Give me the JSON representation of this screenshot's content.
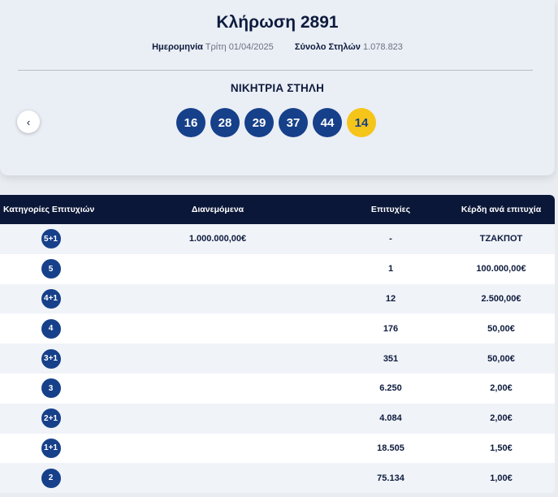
{
  "draw": {
    "title": "Κλήρωση 2891",
    "date_label": "Ημερομηνία",
    "date_value": "Τρίτη 01/04/2025",
    "columns_label": "Σύνολο Στηλών",
    "columns_value": "1.078.823",
    "winning_heading": "ΝΙΚΗΤΡΙΑ ΣΤΗΛΗ",
    "numbers": [
      "16",
      "28",
      "29",
      "37",
      "44"
    ],
    "joker": "14",
    "prev_icon": "chevron-left-icon"
  },
  "table": {
    "headers": {
      "category": "Κατηγορίες Επιτυχιών",
      "distributed": "Διανεμόμενα",
      "winners": "Επιτυχίες",
      "prize": "Κέρδη ανά επιτυχία"
    },
    "rows": [
      {
        "category": "5+1",
        "distributed": "1.000.000,00€",
        "winners": "-",
        "prize": "ΤΖΑΚΠΟΤ"
      },
      {
        "category": "5",
        "distributed": "",
        "winners": "1",
        "prize": "100.000,00€"
      },
      {
        "category": "4+1",
        "distributed": "",
        "winners": "12",
        "prize": "2.500,00€"
      },
      {
        "category": "4",
        "distributed": "",
        "winners": "176",
        "prize": "50,00€"
      },
      {
        "category": "3+1",
        "distributed": "",
        "winners": "351",
        "prize": "50,00€"
      },
      {
        "category": "3",
        "distributed": "",
        "winners": "6.250",
        "prize": "2,00€"
      },
      {
        "category": "2+1",
        "distributed": "",
        "winners": "4.084",
        "prize": "2,00€"
      },
      {
        "category": "1+1",
        "distributed": "",
        "winners": "18.505",
        "prize": "1,50€"
      },
      {
        "category": "2",
        "distributed": "",
        "winners": "75.134",
        "prize": "1,00€"
      }
    ]
  },
  "colors": {
    "ball": "#16408a",
    "joker_ball": "#f5c51a",
    "header_bg": "#0b1738"
  }
}
